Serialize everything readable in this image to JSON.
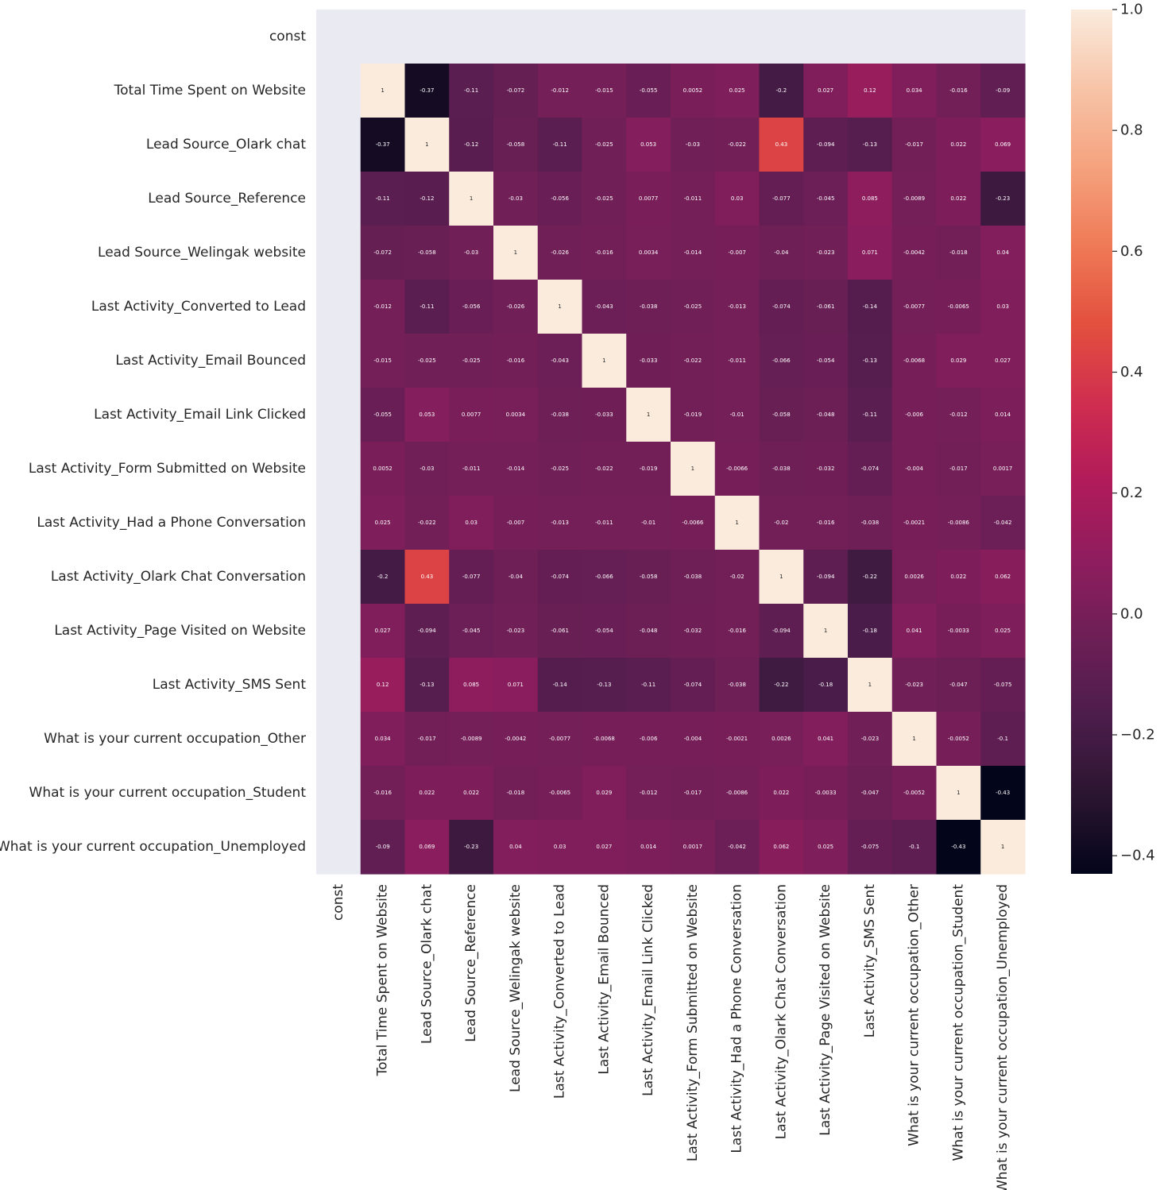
{
  "chart_data": {
    "type": "heatmap",
    "title": "",
    "xlabel": "",
    "ylabel": "",
    "labels": [
      "const",
      "Total Time Spent on Website",
      "Lead Source_Olark chat",
      "Lead Source_Reference",
      "Lead Source_Welingak website",
      "Last Activity_Converted to Lead",
      "Last Activity_Email Bounced",
      "Last Activity_Email Link Clicked",
      "Last Activity_Form Submitted on Website",
      "Last Activity_Had a Phone Conversation",
      "Last Activity_Olark Chat Conversation",
      "Last Activity_Page Visited on Website",
      "Last Activity_SMS Sent",
      "What is your current occupation_Other",
      "What is your current occupation_Student",
      "What is your current occupation_Unemployed"
    ],
    "cell_labels": [
      [
        "",
        "",
        "",
        "",
        "",
        "",
        "",
        "",
        "",
        "",
        "",
        "",
        "",
        "",
        "",
        ""
      ],
      [
        "",
        "1",
        "-0.37",
        "-0.11",
        "-0.072",
        "-0.012",
        "-0.015",
        "-0.055",
        "0.0052",
        "0.025",
        "-0.2",
        "0.027",
        "0.12",
        "0.034",
        "-0.016",
        "-0.09"
      ],
      [
        "",
        "-0.37",
        "1",
        "-0.12",
        "-0.058",
        "-0.11",
        "-0.025",
        "0.053",
        "-0.03",
        "-0.022",
        "0.43",
        "-0.094",
        "-0.13",
        "-0.017",
        "0.022",
        "0.069"
      ],
      [
        "",
        "-0.11",
        "-0.12",
        "1",
        "-0.03",
        "-0.056",
        "-0.025",
        "0.0077",
        "-0.011",
        "0.03",
        "-0.077",
        "-0.045",
        "0.085",
        "-0.0089",
        "0.022",
        "-0.23"
      ],
      [
        "",
        "-0.072",
        "-0.058",
        "-0.03",
        "1",
        "-0.026",
        "-0.016",
        "0.0034",
        "-0.014",
        "-0.007",
        "-0.04",
        "-0.023",
        "0.071",
        "-0.0042",
        "-0.018",
        "0.04"
      ],
      [
        "",
        "-0.012",
        "-0.11",
        "-0.056",
        "-0.026",
        "1",
        "-0.043",
        "-0.038",
        "-0.025",
        "-0.013",
        "-0.074",
        "-0.061",
        "-0.14",
        "-0.0077",
        "-0.0065",
        "0.03"
      ],
      [
        "",
        "-0.015",
        "-0.025",
        "-0.025",
        "-0.016",
        "-0.043",
        "1",
        "-0.033",
        "-0.022",
        "-0.011",
        "-0.066",
        "-0.054",
        "-0.13",
        "-0.0068",
        "0.029",
        "0.027"
      ],
      [
        "",
        "-0.055",
        "0.053",
        "0.0077",
        "0.0034",
        "-0.038",
        "-0.033",
        "1",
        "-0.019",
        "-0.01",
        "-0.058",
        "-0.048",
        "-0.11",
        "-0.006",
        "-0.012",
        "0.014"
      ],
      [
        "",
        "0.0052",
        "-0.03",
        "-0.011",
        "-0.014",
        "-0.025",
        "-0.022",
        "-0.019",
        "1",
        "-0.0066",
        "-0.038",
        "-0.032",
        "-0.074",
        "-0.004",
        "-0.017",
        "0.0017"
      ],
      [
        "",
        "0.025",
        "-0.022",
        "0.03",
        "-0.007",
        "-0.013",
        "-0.011",
        "-0.01",
        "-0.0066",
        "1",
        "-0.02",
        "-0.016",
        "-0.038",
        "-0.0021",
        "-0.0086",
        "-0.042"
      ],
      [
        "",
        "-0.2",
        "0.43",
        "-0.077",
        "-0.04",
        "-0.074",
        "-0.066",
        "-0.058",
        "-0.038",
        "-0.02",
        "1",
        "-0.094",
        "-0.22",
        "0.0026",
        "0.022",
        "0.062"
      ],
      [
        "",
        "0.027",
        "-0.094",
        "-0.045",
        "-0.023",
        "-0.061",
        "-0.054",
        "-0.048",
        "-0.032",
        "-0.016",
        "-0.094",
        "1",
        "-0.18",
        "0.041",
        "-0.0033",
        "0.025"
      ],
      [
        "",
        "0.12",
        "-0.13",
        "0.085",
        "0.071",
        "-0.14",
        "-0.13",
        "-0.11",
        "-0.074",
        "-0.038",
        "-0.22",
        "-0.18",
        "1",
        "-0.023",
        "-0.047",
        "-0.075"
      ],
      [
        "",
        "0.034",
        "-0.017",
        "-0.0089",
        "-0.0042",
        "-0.0077",
        "-0.0068",
        "-0.006",
        "-0.004",
        "-0.0021",
        "0.0026",
        "0.041",
        "-0.023",
        "1",
        "-0.0052",
        "-0.1"
      ],
      [
        "",
        "-0.016",
        "0.022",
        "0.022",
        "-0.018",
        "-0.0065",
        "0.029",
        "-0.012",
        "-0.017",
        "-0.0086",
        "0.022",
        "-0.0033",
        "-0.047",
        "-0.0052",
        "1",
        "-0.43"
      ],
      [
        "",
        "-0.09",
        "0.069",
        "-0.23",
        "0.04",
        "0.03",
        "0.027",
        "0.014",
        "0.0017",
        "-0.042",
        "0.062",
        "0.025",
        "-0.075",
        "-0.1",
        "-0.43",
        "1"
      ]
    ],
    "colorbar": {
      "min": -0.43,
      "max": 1.0,
      "ticks": [
        -0.4,
        -0.2,
        0.0,
        0.2,
        0.4,
        0.6,
        0.8,
        1.0
      ],
      "tick_labels": [
        "−0.4",
        "−0.2",
        "0.0",
        "0.2",
        "0.4",
        "0.6",
        "0.8",
        "1.0"
      ],
      "colormap": "rocket",
      "colors": [
        "#03051a",
        "#2b1530",
        "#4c1d4b",
        "#6d1f56",
        "#8f1d5e",
        "#b11b5a",
        "#d02e4f",
        "#e3503e",
        "#ef7a57",
        "#f5a27e",
        "#f7c4a8",
        "#faebdd"
      ]
    },
    "nan_color": "#eaeaf2",
    "grid": false
  }
}
